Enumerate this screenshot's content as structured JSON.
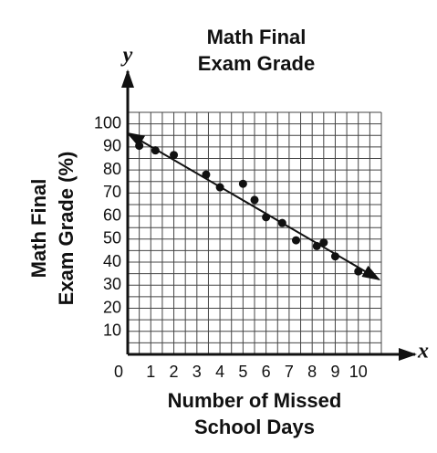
{
  "chart_data": {
    "type": "scatter",
    "title": [
      "Math Final",
      "Exam Grade"
    ],
    "y_axis_label": [
      "Math Final",
      "Exam Grade (%)"
    ],
    "x_axis_label": [
      "Number of Missed",
      "School Days"
    ],
    "x_variable": "x",
    "y_variable": "y",
    "x": [
      0.5,
      1.2,
      2.0,
      3.4,
      4.0,
      5.0,
      5.5,
      6.0,
      6.7,
      7.3,
      8.2,
      8.5,
      9.0,
      10.0
    ],
    "values": [
      90.5,
      88.5,
      86.5,
      78,
      72.5,
      74,
      67,
      59.5,
      57,
      49.5,
      47,
      48.5,
      42.5,
      36
    ],
    "color": "#111111",
    "trend_line": {
      "x": [
        0,
        10.9
      ],
      "y": [
        96,
        32.5
      ],
      "color": "#111111"
    },
    "xlim": [
      0,
      11
    ],
    "ylim": [
      0,
      105
    ],
    "xticks": [
      0,
      1,
      2,
      3,
      4,
      5,
      6,
      7,
      8,
      9,
      10
    ],
    "yticks": [
      10,
      20,
      30,
      40,
      50,
      60,
      70,
      80,
      90,
      100
    ],
    "grid": true
  }
}
